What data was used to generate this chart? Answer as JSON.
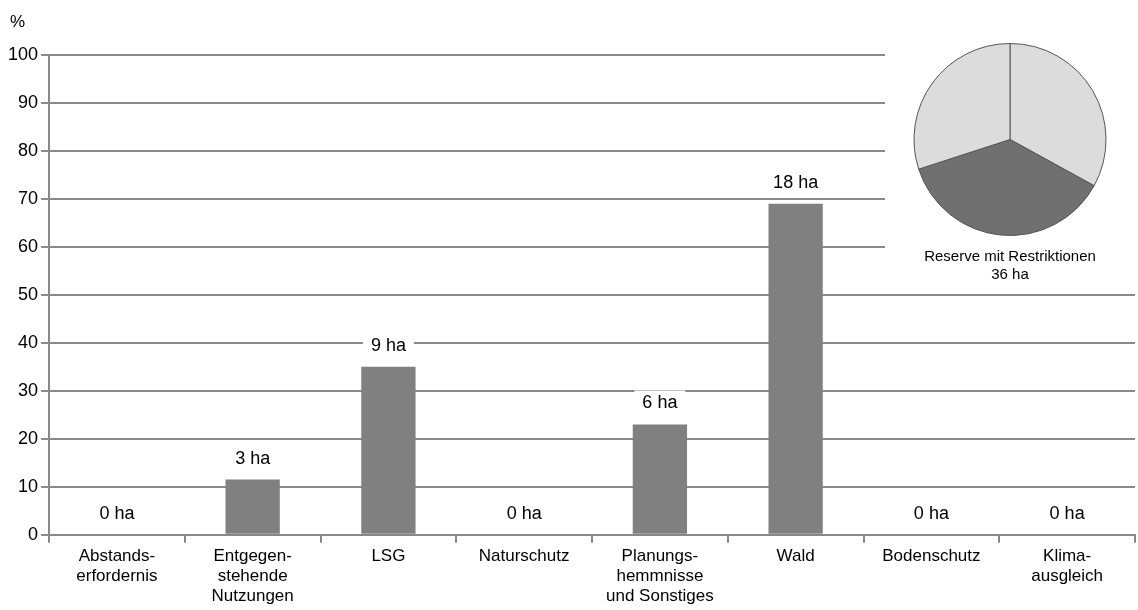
{
  "chart_data": [
    {
      "type": "bar",
      "ylabel": "%",
      "categories": [
        "Abstands-\nerfordernis",
        "Entgegen-\nstehende\nNutzungen",
        "LSG",
        "Naturschutz",
        "Planungs-\nhemmnisse\nund Sonstiges",
        "Wald",
        "Bodenschutz",
        "Klima-\nausgleich"
      ],
      "values": [
        0,
        11.5,
        35,
        0,
        23,
        69,
        0,
        0
      ],
      "annotations": [
        {
          "text": "0 ha",
          "x": "Abstands-\nerfordernis",
          "y": 0
        },
        {
          "text": "3 ha",
          "x": "Entgegen-\nstehende\nNutzungen",
          "y": 11.5
        },
        {
          "text": "9 ha",
          "x": "LSG",
          "y": 35
        },
        {
          "text": "0 ha",
          "x": "Naturschutz",
          "y": 0
        },
        {
          "text": "6 ha",
          "x": "Planungs-\nhemmnisse\nund Sonstiges",
          "y": 23
        },
        {
          "text": "18 ha",
          "x": "Wald",
          "y": 69
        },
        {
          "text": "0 ha",
          "x": "Bodenschutz",
          "y": 0
        },
        {
          "text": "0 ha",
          "x": "Klima-\nausgleich",
          "y": 0
        }
      ],
      "color": "#808080",
      "ylim": [
        0,
        100
      ],
      "yticks": [
        0,
        10,
        20,
        30,
        40,
        50,
        60,
        70,
        80,
        90,
        100
      ],
      "grid": "y",
      "legend": false
    },
    {
      "type": "pie",
      "title": "Reserve mit Restriktionen\n36 ha",
      "categories": [
        null,
        null,
        null
      ],
      "values": [
        33,
        37,
        30
      ],
      "colors": [
        "#dcdcdc",
        "#707070",
        "#dcdcdc"
      ],
      "legend": false
    }
  ]
}
